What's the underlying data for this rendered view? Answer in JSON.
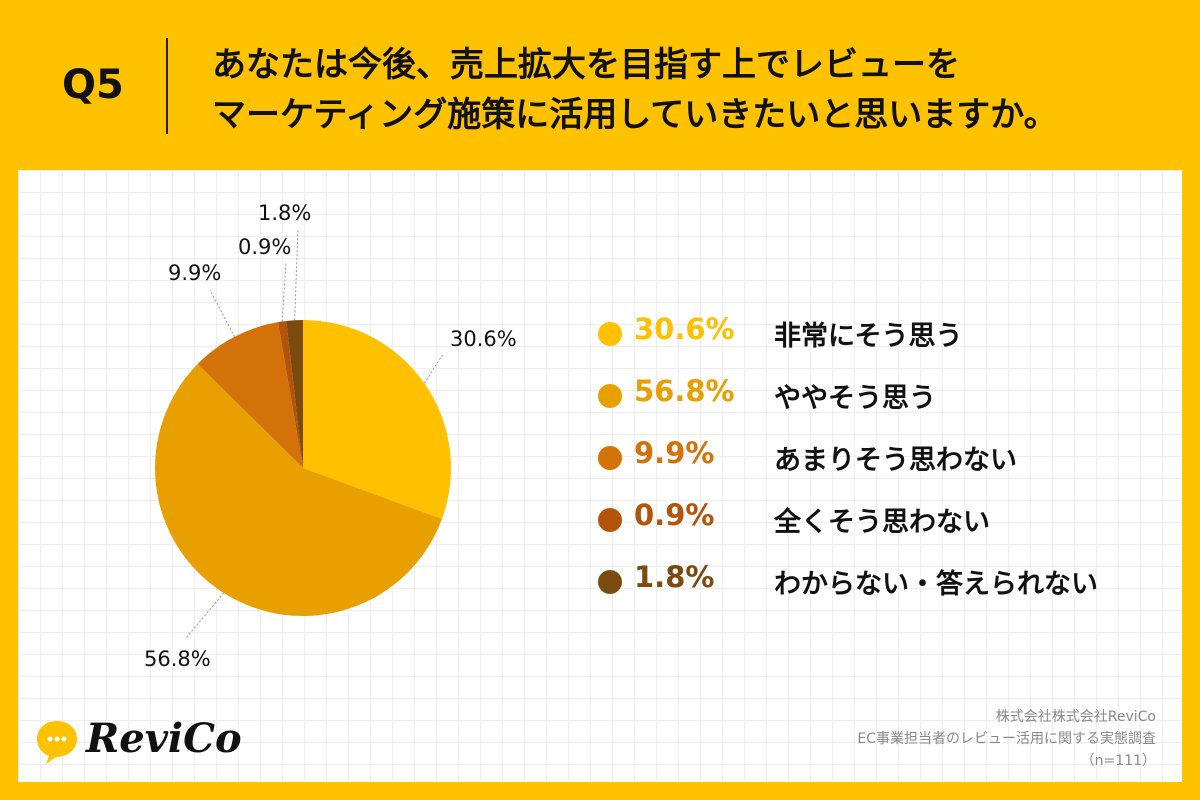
{
  "header": {
    "qnum": "Q5",
    "question_line1": "あなたは今後、売上拡大を目指す上でレビューを",
    "question_line2": "マーケティング施策に活用していきたいと思いますか。"
  },
  "chart_data": {
    "type": "pie",
    "slices": [
      {
        "label": "非常にそう思う",
        "value": 30.6,
        "display": "30.6%",
        "color": "#FFC000"
      },
      {
        "label": "ややそう思う",
        "value": 56.8,
        "display": "56.8%",
        "color": "#E8A000"
      },
      {
        "label": "あまりそう思わない",
        "value": 9.9,
        "display": "9.9%",
        "color": "#D4720A"
      },
      {
        "label": "全くそう思わない",
        "value": 0.9,
        "display": "0.9%",
        "color": "#B3540A"
      },
      {
        "label": "わからない・答えられない",
        "value": 1.8,
        "display": "1.8%",
        "color": "#7A4A0F"
      }
    ],
    "legend_placement": "right"
  },
  "logo": {
    "text": "ReviCo"
  },
  "source": {
    "line1": "株式会社株式会社ReviCo",
    "line2": "EC事業担当者のレビュー活用に関する実態調査",
    "line3": "（n=111）"
  }
}
